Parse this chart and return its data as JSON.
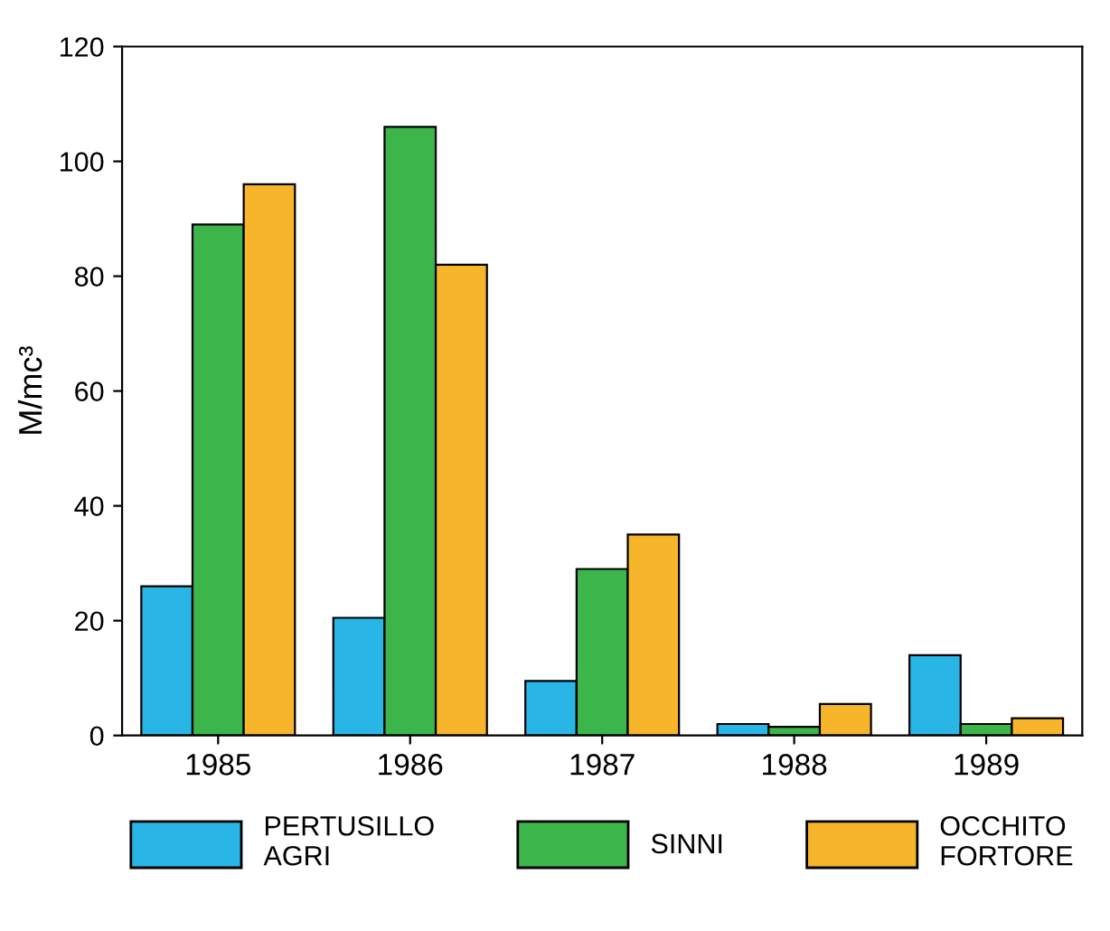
{
  "chart_data": {
    "type": "bar",
    "ylabel": "M/mc³",
    "categories": [
      "1985",
      "1986",
      "1987",
      "1988",
      "1989"
    ],
    "series": [
      {
        "name": "PERTUSILLO\nAGRI",
        "color": "#29b6e6",
        "values": [
          26,
          20.5,
          9.5,
          2,
          14
        ]
      },
      {
        "name": "SINNI",
        "color": "#3cb54a",
        "values": [
          89,
          106,
          29,
          1.5,
          2
        ]
      },
      {
        "name": "OCCHITO\nFORTORE",
        "color": "#f7b52c",
        "values": [
          96,
          82,
          35,
          5.5,
          3
        ]
      }
    ],
    "ylim": [
      0,
      120
    ],
    "yticks": [
      0,
      20,
      40,
      60,
      80,
      100,
      120
    ],
    "grid": false,
    "legend": "bottom"
  }
}
